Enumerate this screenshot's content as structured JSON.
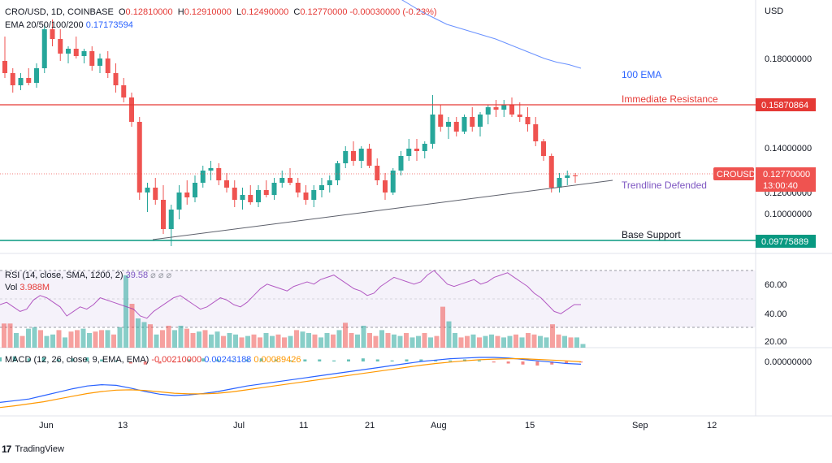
{
  "header": {
    "symbol": "CRO/USD, 1D, COINBASE",
    "open_label": "O",
    "open": "0.12810000",
    "high_label": "H",
    "high": "0.12910000",
    "low_label": "L",
    "low": "0.12490000",
    "close_label": "C",
    "close": "0.12770000",
    "change": "-0.00030000 (-0.23%)",
    "ema_label": "EMA 20/50/100/200",
    "ema_value": "0.17173594"
  },
  "currency": "USD",
  "price_axis": [
    "0.18000000",
    "0.14000000",
    "0.12000000",
    "0.10000000"
  ],
  "price_tags": {
    "resistance": "0.15870864",
    "current": "0.12770000",
    "countdown": "13:00:40",
    "support": "0.09775889",
    "symbol_tag": "CROUSD"
  },
  "annotations": {
    "ema100": "100 EMA",
    "resistance": "Immediate Resistance",
    "trendline": "Trendline Defended",
    "support": "Base Support"
  },
  "rsi": {
    "label": "RSI (14, close, SMA, 1200, 2)",
    "value": "39.58",
    "extra": "⌀ ⌀ ⌀",
    "axis": [
      "60.00",
      "40.00",
      "20.00"
    ]
  },
  "vol": {
    "label": "Vol",
    "value": "3.988M"
  },
  "macd": {
    "label": "MACD (12, 26, close, 9, EMA, EMA)",
    "v1": "-0.00210000",
    "v2": "0.00243188",
    "v3": "0.00089426",
    "axis": "0.00000000"
  },
  "x_axis": [
    "Jun",
    "13",
    "Jul",
    "11",
    "21",
    "Aug",
    "15",
    "Sep",
    "12"
  ],
  "brand": {
    "name": "TradingView"
  },
  "colors": {
    "up": "#26a69a",
    "down": "#ef5350",
    "resistance": "#e53935",
    "support": "#089981",
    "ema": "#2962ff",
    "rsi": "#9c27b0"
  },
  "chart_data": {
    "type": "candlestick",
    "title": "CRO/USD, 1D, COINBASE",
    "y_scale": {
      "min": 0.09,
      "max": 0.2
    },
    "levels": {
      "resistance": 0.15870864,
      "support": 0.09775889,
      "current": 0.1277
    },
    "candles": [
      [
        0.175,
        0.185,
        0.168,
        0.17
      ],
      [
        0.17,
        0.172,
        0.162,
        0.165
      ],
      [
        0.165,
        0.17,
        0.163,
        0.168
      ],
      [
        0.168,
        0.172,
        0.165,
        0.166
      ],
      [
        0.166,
        0.174,
        0.164,
        0.172
      ],
      [
        0.172,
        0.19,
        0.17,
        0.188
      ],
      [
        0.188,
        0.192,
        0.181,
        0.184
      ],
      [
        0.184,
        0.188,
        0.175,
        0.178
      ],
      [
        0.178,
        0.181,
        0.174,
        0.18
      ],
      [
        0.18,
        0.185,
        0.176,
        0.177
      ],
      [
        0.177,
        0.18,
        0.174,
        0.179
      ],
      [
        0.179,
        0.181,
        0.171,
        0.173
      ],
      [
        0.173,
        0.178,
        0.17,
        0.176
      ],
      [
        0.176,
        0.179,
        0.168,
        0.17
      ],
      [
        0.17,
        0.174,
        0.162,
        0.165
      ],
      [
        0.165,
        0.168,
        0.158,
        0.16
      ],
      [
        0.16,
        0.162,
        0.148,
        0.15
      ],
      [
        0.15,
        0.152,
        0.118,
        0.121
      ],
      [
        0.121,
        0.125,
        0.113,
        0.123
      ],
      [
        0.123,
        0.127,
        0.116,
        0.118
      ],
      [
        0.118,
        0.124,
        0.104,
        0.106
      ],
      [
        0.106,
        0.116,
        0.099,
        0.114
      ],
      [
        0.114,
        0.124,
        0.11,
        0.121
      ],
      [
        0.121,
        0.126,
        0.116,
        0.119
      ],
      [
        0.119,
        0.128,
        0.117,
        0.125
      ],
      [
        0.125,
        0.132,
        0.123,
        0.13
      ],
      [
        0.13,
        0.134,
        0.126,
        0.131
      ],
      [
        0.131,
        0.133,
        0.124,
        0.126
      ],
      [
        0.126,
        0.129,
        0.121,
        0.123
      ],
      [
        0.123,
        0.126,
        0.115,
        0.118
      ],
      [
        0.118,
        0.123,
        0.114,
        0.12
      ],
      [
        0.12,
        0.124,
        0.116,
        0.117
      ],
      [
        0.117,
        0.124,
        0.115,
        0.122
      ],
      [
        0.122,
        0.126,
        0.119,
        0.12
      ],
      [
        0.12,
        0.127,
        0.118,
        0.125
      ],
      [
        0.125,
        0.13,
        0.123,
        0.127
      ],
      [
        0.127,
        0.131,
        0.124,
        0.125
      ],
      [
        0.125,
        0.127,
        0.119,
        0.121
      ],
      [
        0.121,
        0.124,
        0.116,
        0.118
      ],
      [
        0.118,
        0.124,
        0.115,
        0.122
      ],
      [
        0.122,
        0.127,
        0.119,
        0.124
      ],
      [
        0.124,
        0.128,
        0.121,
        0.126
      ],
      [
        0.126,
        0.134,
        0.124,
        0.133
      ],
      [
        0.133,
        0.14,
        0.131,
        0.138
      ],
      [
        0.138,
        0.142,
        0.132,
        0.134
      ],
      [
        0.134,
        0.14,
        0.131,
        0.139
      ],
      [
        0.139,
        0.141,
        0.131,
        0.132
      ],
      [
        0.132,
        0.135,
        0.124,
        0.126
      ],
      [
        0.126,
        0.129,
        0.118,
        0.121
      ],
      [
        0.121,
        0.131,
        0.12,
        0.13
      ],
      [
        0.13,
        0.138,
        0.128,
        0.136
      ],
      [
        0.136,
        0.143,
        0.134,
        0.139
      ],
      [
        0.139,
        0.143,
        0.134,
        0.138
      ],
      [
        0.138,
        0.142,
        0.135,
        0.141
      ],
      [
        0.141,
        0.161,
        0.139,
        0.153
      ],
      [
        0.153,
        0.157,
        0.146,
        0.148
      ],
      [
        0.148,
        0.152,
        0.143,
        0.15
      ],
      [
        0.15,
        0.152,
        0.144,
        0.146
      ],
      [
        0.146,
        0.153,
        0.145,
        0.152
      ],
      [
        0.152,
        0.156,
        0.146,
        0.148
      ],
      [
        0.148,
        0.154,
        0.144,
        0.153
      ],
      [
        0.153,
        0.157,
        0.149,
        0.156
      ],
      [
        0.156,
        0.159,
        0.152,
        0.155
      ],
      [
        0.155,
        0.159,
        0.152,
        0.157
      ],
      [
        0.157,
        0.16,
        0.152,
        0.153
      ],
      [
        0.153,
        0.158,
        0.15,
        0.152
      ],
      [
        0.152,
        0.156,
        0.146,
        0.149
      ],
      [
        0.149,
        0.152,
        0.14,
        0.142
      ],
      [
        0.142,
        0.143,
        0.134,
        0.136
      ],
      [
        0.136,
        0.137,
        0.121,
        0.123
      ],
      [
        0.123,
        0.129,
        0.121,
        0.127
      ],
      [
        0.127,
        0.13,
        0.124,
        0.128
      ],
      [
        0.128,
        0.129,
        0.125,
        0.1277
      ]
    ],
    "ema100": [
      0.215,
      0.2115,
      0.208,
      0.2045,
      0.201,
      0.198,
      0.195,
      0.1925,
      0.19,
      0.1885,
      0.187,
      0.1855,
      0.184,
      0.182,
      0.18,
      0.178,
      0.176,
      0.1745,
      0.1735,
      0.172
    ],
    "volume": [
      33,
      33,
      20,
      16,
      26,
      28,
      24,
      16,
      18,
      24,
      14,
      22,
      24,
      26,
      20,
      22,
      24,
      24,
      18,
      28,
      99,
      60,
      40,
      35,
      32,
      18,
      24,
      30,
      24,
      30,
      26,
      20,
      22,
      24,
      18,
      22,
      16,
      20,
      18,
      14,
      16,
      18,
      14,
      20,
      16,
      18,
      14,
      16,
      24,
      22,
      20,
      18,
      14,
      20,
      18,
      24,
      34,
      20,
      18,
      30,
      20,
      16,
      24,
      20,
      18,
      16,
      20,
      14,
      16,
      20,
      14,
      16,
      56,
      36,
      20,
      14,
      16,
      18,
      14,
      16,
      18,
      16,
      14,
      16,
      18,
      14,
      20,
      18,
      16,
      14,
      32,
      18,
      16,
      14,
      14,
      5
    ],
    "rsi": [
      40,
      42,
      38,
      34,
      36,
      44,
      48,
      46,
      42,
      38,
      30,
      34,
      38,
      36,
      40,
      46,
      44,
      42,
      40,
      38,
      36,
      30,
      28,
      34,
      38,
      42,
      46,
      48,
      44,
      40,
      36,
      38,
      42,
      46,
      44,
      40,
      38,
      42,
      48,
      54,
      58,
      56,
      54,
      52,
      56,
      58,
      60,
      58,
      62,
      64,
      66,
      62,
      58,
      54,
      52,
      48,
      50,
      56,
      60,
      64,
      62,
      60,
      58,
      60,
      66,
      70,
      64,
      58,
      56,
      58,
      60,
      62,
      58,
      60,
      64,
      66,
      68,
      64,
      60,
      56,
      50,
      46,
      40,
      34,
      32,
      36,
      40,
      40
    ],
    "macd_line": [
      -0.012,
      -0.0115,
      -0.011,
      -0.01,
      -0.009,
      -0.008,
      -0.0072,
      -0.0068,
      -0.007,
      -0.0078,
      -0.0088,
      -0.0096,
      -0.01,
      -0.0098,
      -0.0094,
      -0.0088,
      -0.008,
      -0.0072,
      -0.0066,
      -0.006,
      -0.0054,
      -0.0048,
      -0.0042,
      -0.0036,
      -0.003,
      -0.0024,
      -0.0018,
      -0.0012,
      -0.0006,
      0.0,
      0.0004,
      0.0008,
      0.001,
      0.0012,
      0.0012,
      0.001,
      0.0006,
      0.0002,
      -0.0002,
      -0.0006,
      -0.0008
    ],
    "macd_signal": [
      -0.0135,
      -0.013,
      -0.0124,
      -0.0118,
      -0.011,
      -0.0102,
      -0.0094,
      -0.0088,
      -0.0084,
      -0.0083,
      -0.0085,
      -0.0089,
      -0.0093,
      -0.0095,
      -0.0095,
      -0.0093,
      -0.0089,
      -0.0083,
      -0.0077,
      -0.0071,
      -0.0065,
      -0.0059,
      -0.0053,
      -0.0047,
      -0.0041,
      -0.0035,
      -0.0029,
      -0.0023,
      -0.0017,
      -0.0011,
      -0.0006,
      -0.0002,
      0.0002,
      0.0005,
      0.0007,
      0.0008,
      0.0008,
      0.0006,
      0.0004,
      0.0002,
      -0.0001
    ],
    "macd_hist": [
      0.0004,
      0.0005,
      0.0003,
      0.0004,
      0.0002,
      0.0003,
      0.0004,
      0.0002,
      0.0001,
      -0.0002,
      -0.0003,
      -0.0002,
      -0.0001,
      0.0002,
      0.0003,
      0.0002,
      0.0001,
      0.0002,
      0.0003,
      0.0002,
      0.0001,
      0.0002,
      0.0002,
      0.0001,
      0.0002,
      0.0003,
      0.0002,
      0.0001,
      0.0002,
      0.0002,
      0.0001,
      0.0001,
      0.0002,
      0.0001,
      -0.0001,
      -0.0002,
      -0.0003,
      -0.0004,
      -0.0003,
      -0.0002,
      -0.0001
    ]
  }
}
